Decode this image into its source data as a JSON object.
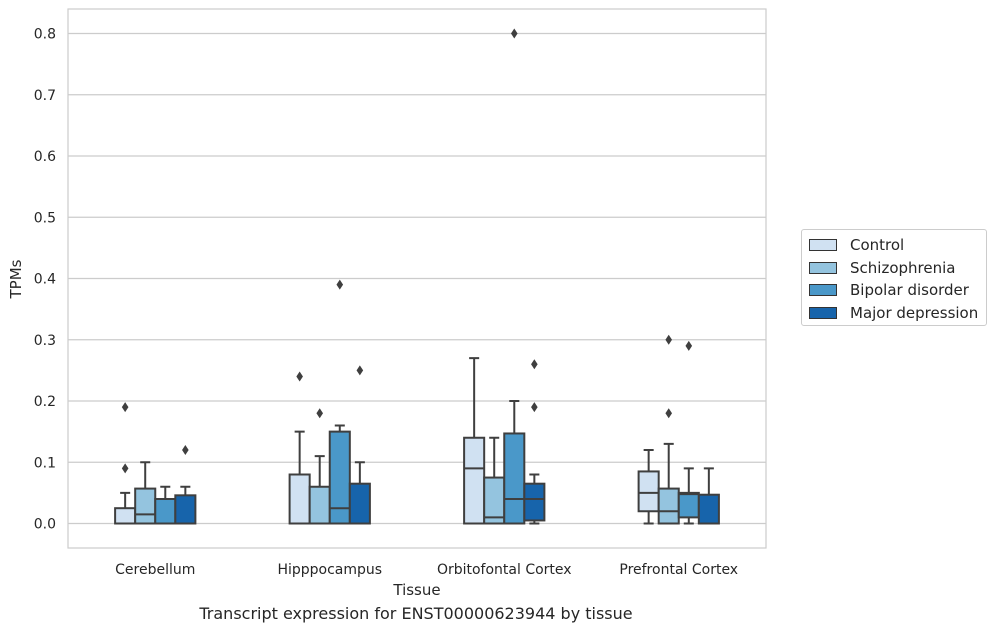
{
  "caption": "Transcript expression for ENST00000623944 by tissue",
  "chart_data": {
    "type": "boxplot",
    "xlabel": "Tissue",
    "ylabel": "TPMs",
    "ylim": [
      -0.04,
      0.84
    ],
    "yticks": [
      "0.0",
      "0.1",
      "0.2",
      "0.3",
      "0.4",
      "0.5",
      "0.6",
      "0.7",
      "0.8"
    ],
    "categories": [
      "Cerebellum",
      "Hipppocampus",
      "Orbitofontal Cortex",
      "Prefrontal Cortex"
    ],
    "grid": "horizontal",
    "legend_position": "outside right",
    "series": [
      {
        "name": "Control",
        "color": "#d0e1f2",
        "boxes": [
          {
            "whislo": 0.0,
            "q1": 0.0,
            "med": 0.0,
            "q3": 0.025,
            "whishi": 0.05,
            "fliers": [
              0.09,
              0.19
            ]
          },
          {
            "whislo": 0.0,
            "q1": 0.0,
            "med": 0.0,
            "q3": 0.08,
            "whishi": 0.15,
            "fliers": [
              0.24
            ]
          },
          {
            "whislo": 0.0,
            "q1": 0.0,
            "med": 0.09,
            "q3": 0.14,
            "whishi": 0.27,
            "fliers": []
          },
          {
            "whislo": 0.0,
            "q1": 0.02,
            "med": 0.05,
            "q3": 0.085,
            "whishi": 0.12,
            "fliers": []
          }
        ]
      },
      {
        "name": "Schizophrenia",
        "color": "#94c4df",
        "boxes": [
          {
            "whislo": 0.0,
            "q1": 0.0,
            "med": 0.015,
            "q3": 0.057,
            "whishi": 0.1,
            "fliers": []
          },
          {
            "whislo": 0.0,
            "q1": 0.0,
            "med": 0.0,
            "q3": 0.06,
            "whishi": 0.11,
            "fliers": [
              0.18
            ]
          },
          {
            "whislo": 0.0,
            "q1": 0.0,
            "med": 0.01,
            "q3": 0.075,
            "whishi": 0.14,
            "fliers": []
          },
          {
            "whislo": 0.0,
            "q1": 0.0,
            "med": 0.02,
            "q3": 0.057,
            "whishi": 0.13,
            "fliers": [
              0.18,
              0.3
            ]
          }
        ]
      },
      {
        "name": "Bipolar disorder",
        "color": "#4a98c9",
        "boxes": [
          {
            "whislo": 0.0,
            "q1": 0.0,
            "med": 0.0,
            "q3": 0.04,
            "whishi": 0.06,
            "fliers": []
          },
          {
            "whislo": 0.0,
            "q1": 0.0,
            "med": 0.025,
            "q3": 0.15,
            "whishi": 0.16,
            "fliers": [
              0.39
            ]
          },
          {
            "whislo": 0.0,
            "q1": 0.0,
            "med": 0.04,
            "q3": 0.147,
            "whishi": 0.2,
            "fliers": [
              0.8
            ]
          },
          {
            "whislo": 0.0,
            "q1": 0.01,
            "med": 0.048,
            "q3": 0.05,
            "whishi": 0.09,
            "fliers": [
              0.29
            ]
          }
        ]
      },
      {
        "name": "Major depression",
        "color": "#1764ab",
        "boxes": [
          {
            "whislo": 0.0,
            "q1": 0.0,
            "med": 0.0,
            "q3": 0.046,
            "whishi": 0.06,
            "fliers": [
              0.12
            ]
          },
          {
            "whislo": 0.0,
            "q1": 0.0,
            "med": 0.0,
            "q3": 0.065,
            "whishi": 0.1,
            "fliers": [
              0.25
            ]
          },
          {
            "whislo": 0.0,
            "q1": 0.005,
            "med": 0.04,
            "q3": 0.065,
            "whishi": 0.08,
            "fliers": [
              0.19,
              0.26
            ]
          },
          {
            "whislo": 0.0,
            "q1": 0.0,
            "med": 0.0,
            "q3": 0.047,
            "whishi": 0.09,
            "fliers": []
          }
        ]
      }
    ]
  }
}
